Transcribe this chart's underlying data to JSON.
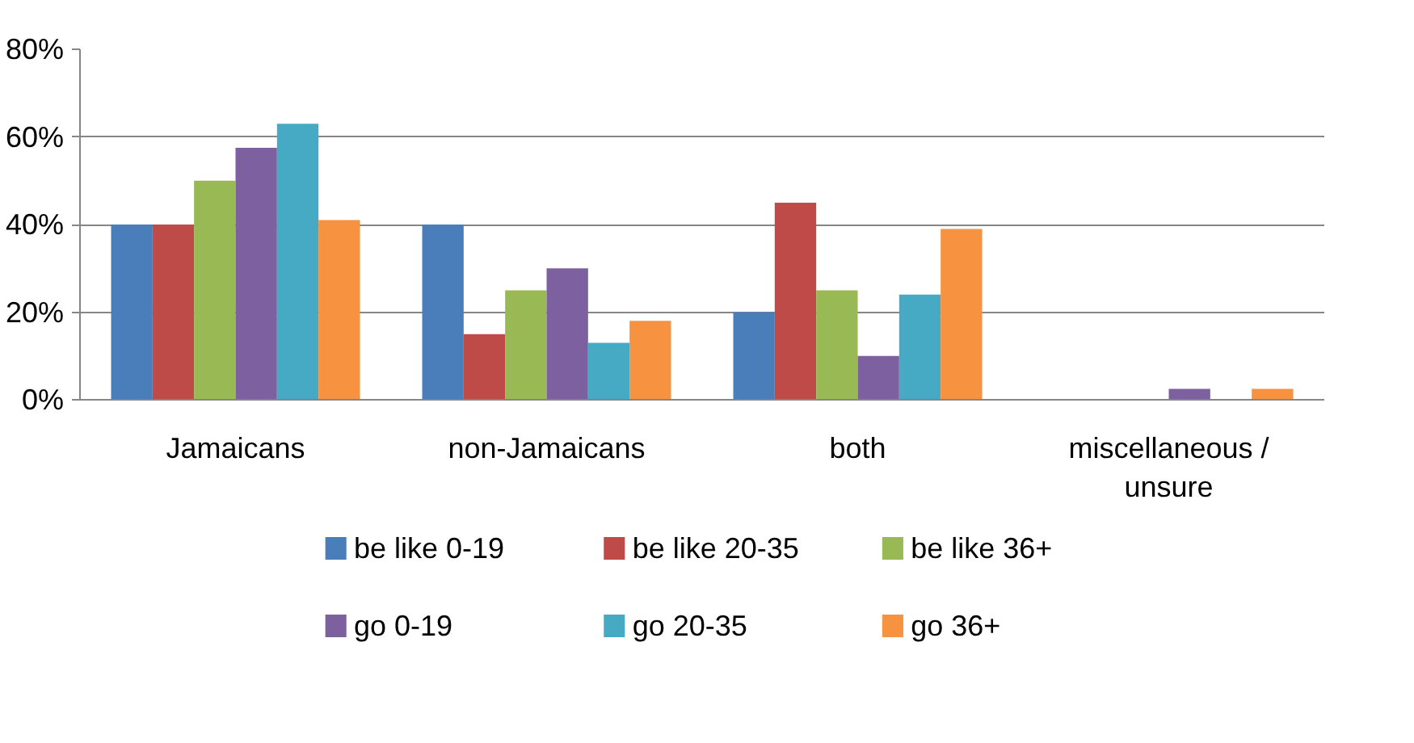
{
  "chart_data": {
    "type": "bar",
    "categories": [
      "Jamaicans",
      "non-Jamaicans",
      "both",
      "miscellaneous /\nunsure"
    ],
    "series": [
      {
        "name": "be like 0-19",
        "color": "#4a7ebb",
        "values": [
          40,
          40,
          20,
          0
        ]
      },
      {
        "name": "be like 20-35",
        "color": "#be4b48",
        "values": [
          40,
          15,
          45,
          0
        ]
      },
      {
        "name": "be like 36+",
        "color": "#98b954",
        "values": [
          50,
          25,
          25,
          0
        ]
      },
      {
        "name": "go 0-19",
        "color": "#7d60a0",
        "values": [
          57.5,
          30,
          10,
          2.5
        ]
      },
      {
        "name": "go 20-35",
        "color": "#46aac5",
        "values": [
          63,
          13,
          24,
          0
        ]
      },
      {
        "name": "go 36+",
        "color": "#f69240",
        "values": [
          41,
          18,
          39,
          2.5
        ]
      }
    ],
    "ylim": [
      0,
      80
    ],
    "yticks": [
      {
        "value": 0,
        "label": "0%"
      },
      {
        "value": 20,
        "label": "20%"
      },
      {
        "value": 40,
        "label": "40%"
      },
      {
        "value": 60,
        "label": "60%"
      },
      {
        "value": 80,
        "label": "80%"
      }
    ],
    "grid": "y",
    "legend": "bottom"
  }
}
